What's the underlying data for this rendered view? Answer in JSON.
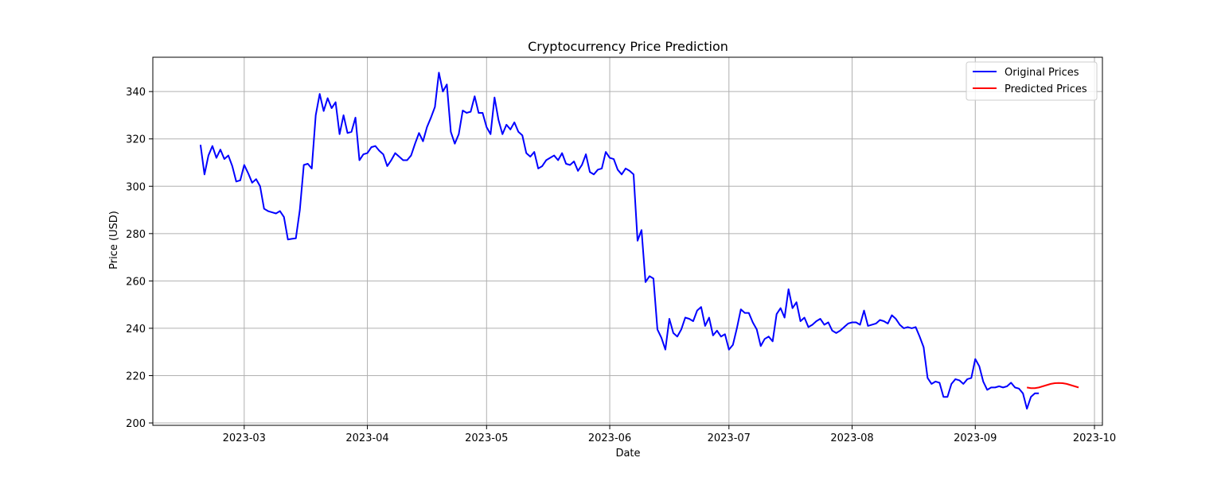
{
  "chart_data": {
    "type": "line",
    "title": "Cryptocurrency Price Prediction",
    "xlabel": "Date",
    "ylabel": "Price (USD)",
    "grid": true,
    "legend_position": "top-right",
    "x_range": [
      "2023-02-06",
      "2023-10-03"
    ],
    "ylim": [
      199,
      354.5
    ],
    "x_ticks": [
      "2023-03-01",
      "2023-04-01",
      "2023-05-01",
      "2023-06-01",
      "2023-07-01",
      "2023-08-01",
      "2023-09-01",
      "2023-10-01"
    ],
    "x_tick_labels": [
      "2023-03",
      "2023-04",
      "2023-05",
      "2023-06",
      "2023-07",
      "2023-08",
      "2023-09",
      "2023-10"
    ],
    "y_ticks": [
      200,
      220,
      240,
      260,
      280,
      300,
      320,
      340
    ],
    "y_tick_labels": [
      "200",
      "220",
      "240",
      "260",
      "280",
      "300",
      "320",
      "340"
    ],
    "colors": {
      "original": "#0000ff",
      "predicted": "#ff0000",
      "grid": "#b0b0b0"
    },
    "series": [
      {
        "name": "Original Prices",
        "start_date": "2023-02-18",
        "step_days": 1,
        "values": [
          317.5,
          305,
          313,
          317,
          312,
          315.5,
          311.5,
          313,
          308.5,
          302,
          302.5,
          309,
          305.5,
          301.5,
          303,
          300,
          290.5,
          289.5,
          289,
          288.5,
          289.5,
          287,
          277.5,
          277.8,
          278,
          290,
          309,
          309.5,
          307.5,
          330,
          339,
          331.8,
          337.2,
          333,
          335.5,
          322,
          330,
          322.5,
          323,
          329,
          311,
          313.5,
          314,
          316.5,
          317,
          315,
          313.5,
          308.5,
          311,
          314,
          312.5,
          311,
          311,
          313,
          318,
          322.5,
          319,
          325,
          329,
          333.5,
          348,
          340,
          343,
          323,
          318,
          322,
          332,
          331,
          331.5,
          338,
          331,
          331,
          325,
          322,
          337.5,
          328,
          322,
          326,
          324,
          327,
          323,
          321.5,
          314,
          312.5,
          314.5,
          307.5,
          308.5,
          311,
          312,
          313,
          311,
          314,
          309.5,
          309,
          310.5,
          306.5,
          309,
          313.5,
          306,
          305,
          307,
          307.5,
          314.5,
          312,
          311.5,
          307,
          305,
          307.5,
          306.5,
          305,
          277,
          281.5,
          259.5,
          262,
          261,
          239.5,
          236,
          231,
          244,
          238,
          236.5,
          239.5,
          244.5,
          244,
          243,
          247.5,
          249,
          241,
          244.5,
          237,
          239,
          236.5,
          237.5,
          231,
          233,
          240,
          248,
          246.5,
          246.5,
          242.5,
          239.5,
          232.5,
          235.5,
          236.5,
          234.5,
          246,
          248.5,
          244.5,
          256.5,
          248.5,
          251,
          243,
          244.5,
          240.5,
          241.5,
          243,
          244,
          241.5,
          242.5,
          239,
          238,
          239,
          240.5,
          242,
          242.5,
          242.5,
          241.5,
          247.5,
          241,
          241.5,
          242,
          243.5,
          243,
          242,
          245.5,
          244,
          241.5,
          240,
          240.5,
          240,
          240.5,
          236.5,
          232,
          219,
          216.5,
          217.5,
          217,
          211,
          211,
          216.5,
          218.5,
          218,
          216.5,
          218.5,
          219,
          227,
          224,
          217.5,
          214,
          215,
          215,
          215.5,
          215,
          215.5,
          217,
          215,
          214.5,
          212.5,
          206,
          211,
          212.5,
          212.5
        ]
      },
      {
        "name": "Predicted Prices",
        "start_date": "2023-09-14",
        "step_days": 1,
        "values": [
          215,
          214.7,
          214.7,
          215,
          215.5,
          216,
          216.5,
          216.8,
          216.9,
          216.8,
          216.5,
          216,
          215.5,
          215
        ]
      }
    ]
  }
}
